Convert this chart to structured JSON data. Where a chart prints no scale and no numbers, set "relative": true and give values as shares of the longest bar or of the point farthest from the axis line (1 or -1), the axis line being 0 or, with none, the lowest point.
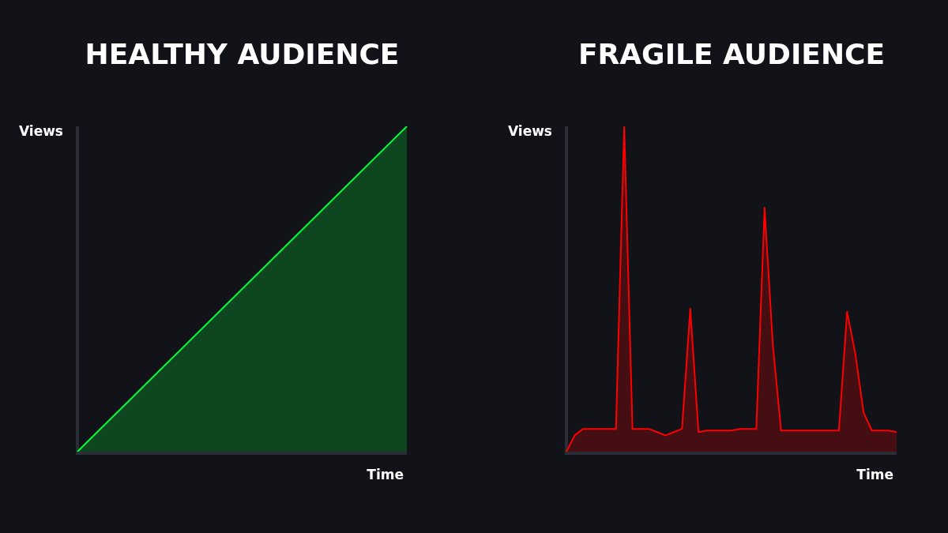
{
  "chart_data": [
    {
      "type": "area",
      "title": "HEALTHY AUDIENCE",
      "xlabel": "Time",
      "ylabel": "Views",
      "relative": true,
      "categories": [
        null,
        null
      ],
      "series": [
        {
          "color": "#00ff3c",
          "values": [
            0,
            1
          ]
        }
      ]
    },
    {
      "type": "area",
      "title": "FRAGILE AUDIENCE",
      "xlabel": "Time",
      "ylabel": "Views",
      "relative": true,
      "categories": [
        null,
        null,
        null,
        null,
        null,
        null,
        null,
        null,
        null,
        null,
        null,
        null,
        null,
        null,
        null,
        null,
        null,
        null,
        null,
        null,
        null,
        null,
        null,
        null,
        null,
        null,
        null,
        null,
        null,
        null,
        null,
        null,
        null,
        null,
        null,
        null,
        null,
        null,
        null,
        null,
        null
      ],
      "series": [
        {
          "color": "#ff0000",
          "values": [
            0,
            0.05,
            0.07,
            0.07,
            0.07,
            0.07,
            0.07,
            1,
            0.07,
            0.07,
            0.07,
            0.06,
            0.05,
            0.06,
            0.07,
            0.44,
            0.06,
            0.065,
            0.065,
            0.065,
            0.065,
            0.07,
            0.07,
            0.07,
            0.75,
            0.33,
            0.065,
            0.065,
            0.065,
            0.065,
            0.065,
            0.065,
            0.065,
            0.065,
            0.43,
            0.3,
            0.12,
            0.065,
            0.065,
            0.065,
            0.06
          ]
        }
      ]
    }
  ]
}
